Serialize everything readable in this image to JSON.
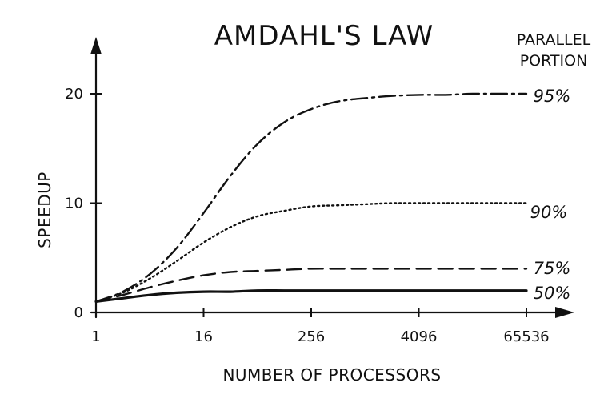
{
  "chart_data": {
    "type": "line",
    "title": "AMDAHL'S LAW",
    "xlabel": "NUMBER OF PROCESSORS",
    "ylabel": "SPEEDUP",
    "x_scale": "log2",
    "x": [
      1,
      2,
      4,
      8,
      16,
      32,
      64,
      128,
      256,
      512,
      1024,
      2048,
      4096,
      8192,
      16384,
      32768,
      65536
    ],
    "x_ticks": [
      "1",
      "16",
      "256",
      "4096",
      "65536"
    ],
    "y_ticks": [
      "0",
      "10",
      "20"
    ],
    "xlim": [
      1,
      65536
    ],
    "ylim": [
      0,
      20
    ],
    "grid": false,
    "legend_title": [
      "PARALLEL",
      "PORTION"
    ],
    "legend_position": "right",
    "series": [
      {
        "name": "95%",
        "style": "dashdot",
        "values": [
          1,
          1.9,
          3.5,
          5.9,
          9.1,
          12.5,
          15.4,
          17.4,
          18.6,
          19.3,
          19.6,
          19.8,
          19.9,
          19.9,
          20.0,
          20.0,
          20.0
        ]
      },
      {
        "name": "90%",
        "style": "dotted",
        "values": [
          1,
          1.8,
          3.1,
          4.7,
          6.4,
          7.8,
          8.8,
          9.3,
          9.7,
          9.8,
          9.9,
          10.0,
          10.0,
          10.0,
          10.0,
          10.0,
          10.0
        ]
      },
      {
        "name": "75%",
        "style": "dashed",
        "values": [
          1,
          1.6,
          2.3,
          2.9,
          3.4,
          3.7,
          3.8,
          3.9,
          4.0,
          4.0,
          4.0,
          4.0,
          4.0,
          4.0,
          4.0,
          4.0,
          4.0
        ]
      },
      {
        "name": "50%",
        "style": "solid",
        "values": [
          1,
          1.3,
          1.6,
          1.8,
          1.9,
          1.9,
          2.0,
          2.0,
          2.0,
          2.0,
          2.0,
          2.0,
          2.0,
          2.0,
          2.0,
          2.0,
          2.0
        ]
      }
    ],
    "colors": {
      "ink": "#111111",
      "background": "#ffffff"
    }
  }
}
